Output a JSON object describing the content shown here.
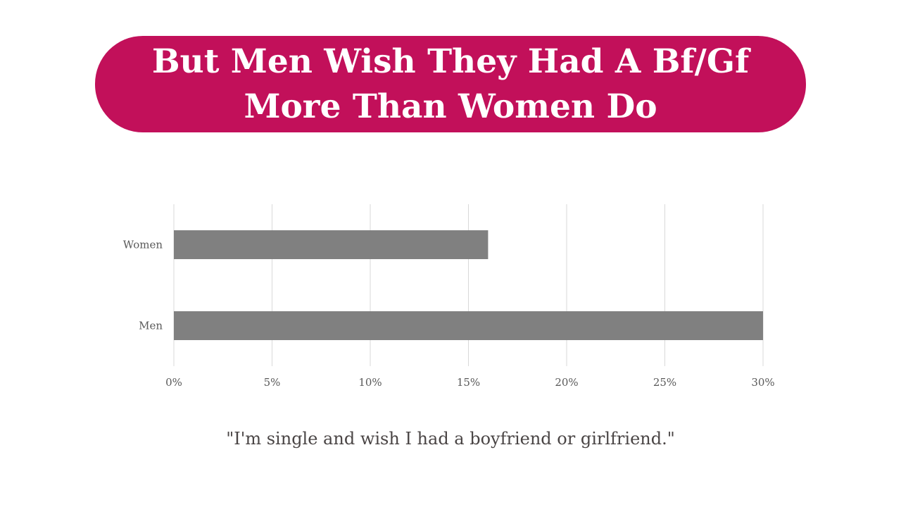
{
  "title": "But Men Wish They Had A Bf/Gf More Than Women Do",
  "caption": "\"I'm single and wish I had a boyfriend or girlfriend.\"",
  "colors": {
    "banner": "#c2105a",
    "bar": "#808080",
    "grid": "#d9d9d9",
    "label": "#595959"
  },
  "chart_data": {
    "type": "bar",
    "orientation": "horizontal",
    "categories": [
      "Women",
      "Men"
    ],
    "values": [
      16,
      30
    ],
    "value_unit": "%",
    "xlim": [
      0,
      30
    ],
    "xticks": [
      0,
      5,
      10,
      15,
      20,
      25,
      30
    ],
    "xtick_labels": [
      "0%",
      "5%",
      "10%",
      "15%",
      "20%",
      "25%",
      "30%"
    ],
    "grid": true,
    "legend": false
  }
}
